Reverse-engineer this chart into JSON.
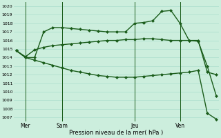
{
  "title": "",
  "xlabel": "Pression niveau de la mer( hPa )",
  "ylabel": "",
  "bg_color": "#cceedd",
  "line_color": "#1a5c1a",
  "grid_color": "#aaddcc",
  "ylim": [
    1006.5,
    1020.5
  ],
  "xlim": [
    -0.3,
    22.3
  ],
  "yticks": [
    1007,
    1008,
    1009,
    1010,
    1011,
    1012,
    1013,
    1014,
    1015,
    1016,
    1017,
    1018,
    1019,
    1020
  ],
  "xtick_positions": [
    1,
    5,
    13,
    18
  ],
  "xtick_labels": [
    "Mer",
    "Sam",
    "Jeu",
    "Ven"
  ],
  "vlines": [
    1,
    5,
    13,
    18
  ],
  "line1": [
    1014.8,
    1014.0,
    1014.0,
    1017.0,
    1017.5,
    1017.5,
    1017.4,
    1017.3,
    1017.2,
    1017.1,
    1017.0,
    1017.0,
    1017.0,
    1018.0,
    1018.1,
    1018.3,
    1019.4,
    1019.5,
    1018.0,
    1016.0,
    1016.0,
    1012.3,
    1012.0
  ],
  "line2": [
    1014.8,
    1014.1,
    1014.9,
    1015.2,
    1015.4,
    1015.5,
    1015.6,
    1015.7,
    1015.8,
    1015.9,
    1016.0,
    1016.0,
    1016.1,
    1016.1,
    1016.2,
    1016.2,
    1016.1,
    1016.0,
    1016.0,
    1016.0,
    1015.9,
    1013.0,
    1009.5
  ],
  "line3": [
    1014.8,
    1014.0,
    1013.7,
    1013.4,
    1013.1,
    1012.8,
    1012.5,
    1012.3,
    1012.1,
    1011.9,
    1011.8,
    1011.7,
    1011.7,
    1011.7,
    1011.8,
    1011.9,
    1012.0,
    1012.1,
    1012.2,
    1012.3,
    1012.5,
    1007.5,
    1006.8
  ],
  "marker": "D",
  "markersize": 2.0,
  "linewidth": 1.0
}
